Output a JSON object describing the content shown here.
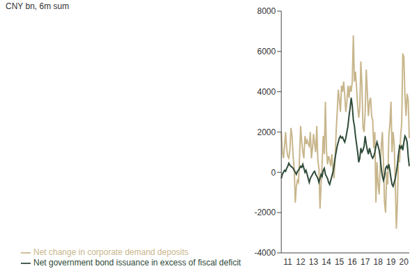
{
  "chart_data": {
    "type": "line",
    "ylabel": "CNY bn, 6m sum",
    "categories": [
      null,
      null,
      null,
      null,
      null,
      null,
      "11",
      null,
      null,
      null,
      null,
      null,
      null,
      null,
      null,
      null,
      null,
      null,
      "12",
      null,
      null,
      null,
      null,
      null,
      null,
      null,
      null,
      null,
      null,
      null,
      "13",
      null,
      null,
      null,
      null,
      null,
      null,
      null,
      null,
      null,
      null,
      null,
      "14",
      null,
      null,
      null,
      null,
      null,
      null,
      null,
      null,
      null,
      null,
      null,
      "15",
      null,
      null,
      null,
      null,
      null,
      null,
      null,
      null,
      null,
      null,
      null,
      "16",
      null,
      null,
      null,
      null,
      null,
      null,
      null,
      null,
      null,
      null,
      null,
      "17",
      null,
      null,
      null,
      null,
      null,
      null,
      null,
      null,
      null,
      null,
      null,
      "18",
      null,
      null,
      null,
      null,
      null,
      null,
      null,
      null,
      null,
      null,
      null,
      "19",
      null,
      null,
      null,
      null,
      null,
      null,
      null,
      null,
      null,
      null,
      null,
      "20",
      null,
      null,
      null,
      null,
      null
    ],
    "ylim": [
      -4000,
      8000
    ],
    "yticks": [
      -4000,
      -2000,
      0,
      2000,
      4000,
      6000,
      8000
    ],
    "legend": "bottom",
    "grid": false,
    "series": [
      {
        "name": "Net government bond issuance in excess of fiscal deficit",
        "color": "#2e4a38",
        "values": [
          -300,
          -100,
          0,
          100,
          50,
          200,
          300,
          450,
          350,
          300,
          250,
          200,
          100,
          0,
          -100,
          50,
          100,
          200,
          300,
          250,
          400,
          200,
          0,
          100,
          -100,
          -300,
          -500,
          -300,
          -200,
          -100,
          0,
          50,
          -100,
          -200,
          -300,
          -500,
          -300,
          -100,
          -200,
          100,
          200,
          -100,
          -200,
          -300,
          -500,
          -600,
          -400,
          -200,
          0,
          300,
          700,
          1000,
          1300,
          1500,
          1700,
          1800,
          1700,
          1750,
          1600,
          1500,
          1700,
          2000,
          2300,
          2800,
          3200,
          3700,
          3300,
          2600,
          2300,
          1800,
          1400,
          1000,
          500,
          700,
          1200,
          1000,
          1100,
          1300,
          1800,
          1400,
          1100,
          900,
          1200,
          1000,
          800,
          700,
          800,
          1000,
          1300,
          1500,
          1300,
          1100,
          700,
          200,
          -200,
          -400,
          -200,
          200,
          300,
          200,
          400,
          100,
          -300,
          -600,
          -700,
          -500,
          -300,
          0,
          400,
          900,
          1300,
          1200,
          1300,
          1100,
          1500,
          1800,
          1700,
          1500,
          800,
          300
        ]
      },
      {
        "name": "Net change in corporate demand deposits",
        "color": "#c8b68c",
        "values": [
          2000,
          1000,
          700,
          1300,
          2000,
          1200,
          800,
          700,
          1100,
          2200,
          1800,
          800,
          200,
          -1500,
          -700,
          -400,
          -500,
          800,
          2300,
          1500,
          1000,
          700,
          1800,
          1400,
          1600,
          1400,
          1300,
          2000,
          700,
          1200,
          1900,
          1400,
          1000,
          2300,
          600,
          200,
          -1800,
          -600,
          500,
          1800,
          900,
          3500,
          1100,
          400,
          800,
          600,
          300,
          900,
          200,
          -300,
          600,
          2000,
          3000,
          4100,
          3600,
          3000,
          4300,
          4000,
          4500,
          3800,
          3000,
          3500,
          4300,
          3700,
          4300,
          4000,
          4500,
          6800,
          4500,
          5000,
          4200,
          3300,
          2700,
          3200,
          5500,
          4300,
          2200,
          2000,
          3000,
          5100,
          4000,
          2800,
          3500,
          3700,
          2800,
          2600,
          1200,
          2000,
          -1500,
          500,
          -600,
          -1100,
          300,
          1300,
          2000,
          500,
          -1500,
          -2000,
          0,
          -600,
          1800,
          2400,
          3500,
          1000,
          2000,
          1400,
          -500,
          -2800,
          -1500,
          900,
          500,
          1800,
          2500,
          5900,
          5700,
          3800,
          2800,
          3900,
          3600,
          1700
        ]
      }
    ]
  }
}
